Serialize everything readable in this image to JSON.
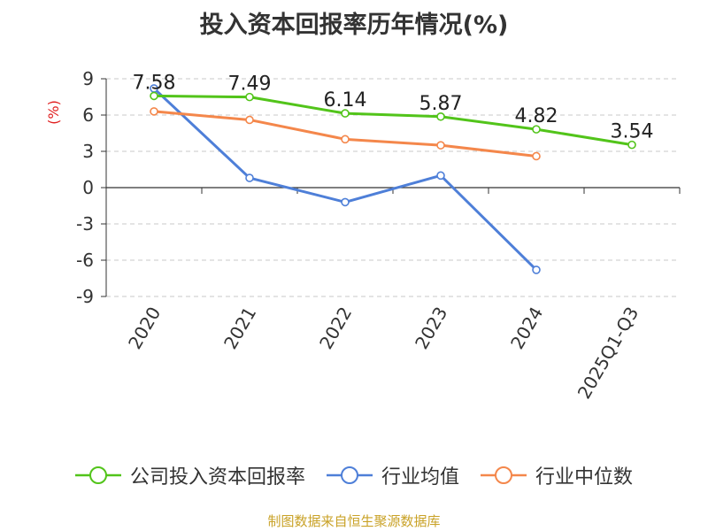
{
  "chart_data": {
    "type": "line",
    "title": "投入资本回报率历年情况(%)",
    "ylabel": "(%)",
    "xlabel": "",
    "categories": [
      "2020",
      "2021",
      "2022",
      "2023",
      "2024",
      "2025Q1-Q3"
    ],
    "ylim": [
      -9,
      9
    ],
    "yticks": [
      "9",
      "6",
      "3",
      "0",
      "-3",
      "-6",
      "-9"
    ],
    "ytick_values": [
      9,
      6,
      3,
      0,
      -3,
      -6,
      -9
    ],
    "grid": true,
    "legend_position": "bottom",
    "series": [
      {
        "name": "公司投入资本回报率",
        "color": "#52c41a",
        "values": [
          7.58,
          7.49,
          6.14,
          5.87,
          4.82,
          3.54
        ],
        "labels": [
          "7.58",
          "7.49",
          "6.14",
          "5.87",
          "4.82",
          "3.54"
        ]
      },
      {
        "name": "行业均值",
        "color": "#4e7fd8",
        "values": [
          8.2,
          0.8,
          -1.2,
          1.0,
          -6.8,
          null
        ]
      },
      {
        "name": "行业中位数",
        "color": "#f4874b",
        "values": [
          6.3,
          5.6,
          4.0,
          3.5,
          2.6,
          null
        ]
      }
    ]
  },
  "source": "制图数据来自恒生聚源数据库"
}
